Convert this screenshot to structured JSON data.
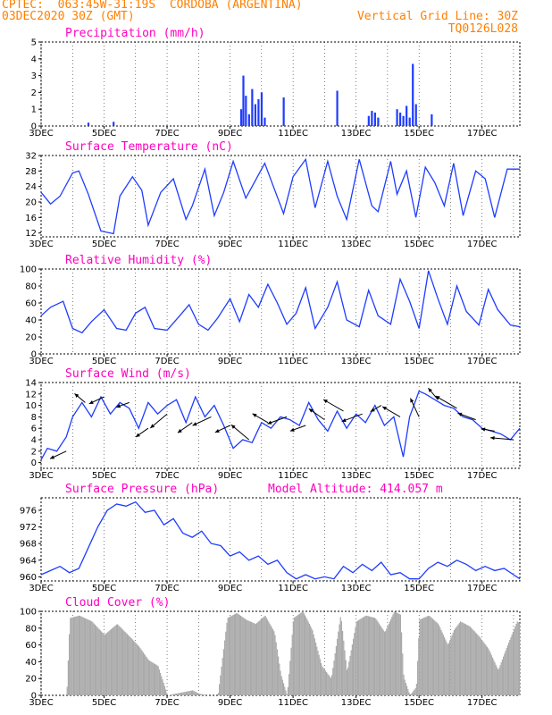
{
  "header": {
    "line1": "CPTEC:  063:45W-31:19S  CORDOBA (ARGENTINA)",
    "line2": "03DEC2020 30Z (GMT)",
    "grid_note": "Vertical Grid Line: 30Z",
    "code": "TQ0126L028"
  },
  "colors": {
    "header": "#ff8000",
    "title": "#ff00c0",
    "line": "#1e3cff",
    "bars": "#1e3cff",
    "cloud": "#aaaaaa",
    "grid": "#000000"
  },
  "chart_data": [
    {
      "type": "bar",
      "title": "Precipitation (mm/h)",
      "ylim": [
        0,
        5
      ],
      "yticks": [
        0,
        1,
        2,
        3,
        4,
        5
      ],
      "x_date_labels": [
        "3DEC",
        "5DEC",
        "7DEC",
        "9DEC",
        "11DEC",
        "13DEC",
        "15DEC",
        "17DEC"
      ],
      "x_range_days": [
        3.0,
        18.2
      ],
      "series": [
        {
          "x": [
            4.5,
            5.3,
            9.35,
            9.42,
            9.5,
            9.6,
            9.7,
            9.8,
            9.9,
            10.0,
            10.1,
            10.7,
            12.4,
            13.4,
            13.5,
            13.6,
            13.7,
            14.3,
            14.4,
            14.5,
            14.6,
            14.7,
            14.8,
            14.9,
            15.4
          ],
          "values": [
            0.2,
            0.25,
            1.0,
            3.0,
            1.8,
            0.7,
            2.2,
            1.3,
            1.6,
            2.0,
            0.5,
            1.7,
            2.1,
            0.6,
            0.9,
            0.8,
            0.5,
            1.0,
            0.8,
            0.6,
            1.2,
            0.5,
            3.7,
            1.3,
            0.7
          ]
        }
      ]
    },
    {
      "type": "line",
      "title": "Surface Temperature (nC)",
      "ylim": [
        11,
        32
      ],
      "yticks": [
        12,
        16,
        20,
        24,
        28,
        32
      ],
      "x_date_labels": [
        "3DEC",
        "5DEC",
        "7DEC",
        "9DEC",
        "11DEC",
        "13DEC",
        "15DEC",
        "17DEC"
      ],
      "x_range_days": [
        3.0,
        18.2
      ],
      "series": [
        {
          "x": [
            3.0,
            3.3,
            3.6,
            4.0,
            4.2,
            4.5,
            4.9,
            5.3,
            5.5,
            5.9,
            6.2,
            6.4,
            6.8,
            7.2,
            7.6,
            7.8,
            8.2,
            8.5,
            8.8,
            9.1,
            9.5,
            9.8,
            10.1,
            10.4,
            10.7,
            11.0,
            11.4,
            11.7,
            12.1,
            12.4,
            12.7,
            13.1,
            13.5,
            13.7,
            14.1,
            14.3,
            14.6,
            14.9,
            15.2,
            15.5,
            15.8,
            16.1,
            16.4,
            16.8,
            17.1,
            17.4,
            17.8,
            18.2
          ],
          "values": [
            22.5,
            19.5,
            21.5,
            27.5,
            28.0,
            22.0,
            12.5,
            11.8,
            21.5,
            26.5,
            23.0,
            14.0,
            22.5,
            26.0,
            15.5,
            19.0,
            28.5,
            16.5,
            22.5,
            30.5,
            21.0,
            25.5,
            30.0,
            23.5,
            17.0,
            26.5,
            31.0,
            18.5,
            30.5,
            21.5,
            15.5,
            31.0,
            19.0,
            17.5,
            30.5,
            22.0,
            28.0,
            16.0,
            29.0,
            25.0,
            19.0,
            30.0,
            16.5,
            28.0,
            26.0,
            16.0,
            28.5,
            28.5
          ]
        }
      ]
    },
    {
      "type": "line",
      "title": "Relative Humidity (%)",
      "ylim": [
        0,
        100
      ],
      "yticks": [
        0,
        20,
        40,
        60,
        80,
        100
      ],
      "x_date_labels": [
        "3DEC",
        "5DEC",
        "7DEC",
        "9DEC",
        "11DEC",
        "13DEC",
        "15DEC",
        "17DEC"
      ],
      "x_range_days": [
        3.0,
        18.2
      ],
      "series": [
        {
          "x": [
            3.0,
            3.3,
            3.7,
            4.0,
            4.3,
            4.6,
            5.0,
            5.4,
            5.7,
            6.0,
            6.3,
            6.6,
            7.0,
            7.4,
            7.7,
            8.0,
            8.3,
            8.6,
            9.0,
            9.3,
            9.6,
            9.9,
            10.2,
            10.5,
            10.8,
            11.1,
            11.4,
            11.7,
            12.1,
            12.4,
            12.7,
            13.1,
            13.4,
            13.7,
            14.1,
            14.4,
            14.7,
            15.0,
            15.3,
            15.6,
            15.9,
            16.2,
            16.5,
            16.9,
            17.2,
            17.5,
            17.9,
            18.2
          ],
          "values": [
            45,
            55,
            62,
            30,
            25,
            38,
            52,
            30,
            28,
            48,
            55,
            30,
            28,
            45,
            58,
            35,
            28,
            42,
            65,
            38,
            70,
            55,
            82,
            60,
            35,
            48,
            78,
            30,
            55,
            85,
            40,
            32,
            75,
            45,
            35,
            88,
            62,
            30,
            98,
            65,
            35,
            80,
            50,
            34,
            76,
            52,
            34,
            32
          ]
        }
      ]
    },
    {
      "type": "line",
      "title": "Surface Wind (m/s)",
      "ylim": [
        -1,
        14
      ],
      "yticks": [
        0,
        2,
        4,
        6,
        8,
        10,
        12,
        14
      ],
      "x_date_labels": [
        "3DEC",
        "5DEC",
        "7DEC",
        "9DEC",
        "11DEC",
        "13DEC",
        "15DEC",
        "17DEC"
      ],
      "x_range_days": [
        3.0,
        18.2
      ],
      "series": [
        {
          "x": [
            3.0,
            3.2,
            3.5,
            3.8,
            4.0,
            4.3,
            4.6,
            4.9,
            5.2,
            5.5,
            5.8,
            6.1,
            6.4,
            6.7,
            7.0,
            7.3,
            7.6,
            7.9,
            8.2,
            8.5,
            8.8,
            9.1,
            9.4,
            9.7,
            10.0,
            10.3,
            10.6,
            10.9,
            11.2,
            11.5,
            11.8,
            12.1,
            12.4,
            12.7,
            13.0,
            13.3,
            13.6,
            13.9,
            14.2,
            14.5,
            14.7,
            15.0,
            15.2,
            15.5,
            15.8,
            16.1,
            16.4,
            16.7,
            17.0,
            17.3,
            17.6,
            17.9,
            18.2
          ],
          "values": [
            0.5,
            2.5,
            2.0,
            4.5,
            8.0,
            10.5,
            8.0,
            11.5,
            8.5,
            10.5,
            9.5,
            6.0,
            10.5,
            8.5,
            10.0,
            11.0,
            7.0,
            11.5,
            8.0,
            10.0,
            6.5,
            2.5,
            4.0,
            3.5,
            7.0,
            6.0,
            8.0,
            7.5,
            6.5,
            10.5,
            7.5,
            5.5,
            9.0,
            6.0,
            8.5,
            7.0,
            10.0,
            6.5,
            8.0,
            1.0,
            8.0,
            12.5,
            12.0,
            11.0,
            10.0,
            9.5,
            8.0,
            7.5,
            6.0,
            5.5,
            5.0,
            4.0,
            6.0
          ]
        }
      ],
      "wind_barbs_x": [
        3.8,
        4.4,
        5.0,
        5.8,
        6.4,
        7.0,
        7.8,
        8.4,
        9.0,
        9.6,
        10.2,
        10.8,
        11.4,
        12.0,
        12.6,
        13.2,
        13.8,
        14.4,
        15.0,
        15.6,
        16.2,
        16.8,
        17.4,
        18.0
      ]
    },
    {
      "type": "line",
      "title": "Surface Pressure (hPa)",
      "annotation": "Model Altitude: 414.057 m",
      "ylim": [
        959,
        979
      ],
      "yticks": [
        960,
        964,
        968,
        972,
        976
      ],
      "x_date_labels": [
        "3DEC",
        "5DEC",
        "7DEC",
        "9DEC",
        "11DEC",
        "13DEC",
        "15DEC",
        "17DEC"
      ],
      "x_range_days": [
        3.0,
        18.2
      ],
      "series": [
        {
          "x": [
            3.0,
            3.3,
            3.6,
            3.9,
            4.2,
            4.5,
            4.8,
            5.1,
            5.4,
            5.7,
            6.0,
            6.3,
            6.6,
            6.9,
            7.2,
            7.5,
            7.8,
            8.1,
            8.4,
            8.7,
            9.0,
            9.3,
            9.6,
            9.9,
            10.2,
            10.5,
            10.8,
            11.1,
            11.4,
            11.7,
            12.0,
            12.3,
            12.6,
            12.9,
            13.2,
            13.5,
            13.8,
            14.1,
            14.4,
            14.7,
            15.0,
            15.3,
            15.6,
            15.9,
            16.2,
            16.5,
            16.8,
            17.1,
            17.4,
            17.7,
            18.0,
            18.2
          ],
          "values": [
            960.5,
            961.5,
            962.5,
            961.0,
            962.0,
            967.0,
            972.0,
            976.0,
            977.5,
            977.0,
            978.0,
            975.5,
            976.0,
            972.5,
            974.0,
            970.5,
            969.5,
            971.0,
            968.0,
            967.5,
            965.0,
            966.0,
            964.0,
            965.0,
            963.0,
            964.0,
            961.0,
            959.5,
            960.5,
            959.5,
            960.0,
            959.5,
            962.5,
            961.0,
            963.0,
            961.5,
            963.5,
            960.5,
            961.0,
            959.5,
            959.5,
            962.0,
            963.5,
            962.5,
            964.0,
            963.0,
            961.5,
            962.5,
            961.5,
            962.0,
            960.5,
            959.5
          ]
        }
      ]
    },
    {
      "type": "area",
      "title": "Cloud Cover (%)",
      "ylim": [
        0,
        100
      ],
      "yticks": [
        0,
        20,
        40,
        60,
        80,
        100
      ],
      "x_date_labels": [
        "3DEC",
        "5DEC",
        "7DEC",
        "9DEC",
        "11DEC",
        "13DEC",
        "15DEC",
        "17DEC"
      ],
      "x_range_days": [
        3.0,
        18.2
      ],
      "series": [
        {
          "x": [
            3.0,
            3.8,
            3.9,
            4.2,
            4.6,
            5.0,
            5.4,
            5.8,
            6.1,
            6.4,
            6.7,
            6.9,
            7.0,
            7.8,
            8.0,
            8.3,
            8.6,
            8.9,
            9.2,
            9.5,
            9.8,
            10.1,
            10.4,
            10.6,
            10.8,
            11.0,
            11.3,
            11.6,
            11.9,
            12.2,
            12.5,
            12.7,
            13.0,
            13.3,
            13.6,
            13.9,
            14.2,
            14.4,
            14.5,
            14.7,
            14.9,
            15.0,
            15.3,
            15.6,
            15.9,
            16.1,
            16.3,
            16.6,
            16.9,
            17.2,
            17.5,
            17.8,
            18.1,
            18.2
          ],
          "values": [
            0,
            0,
            92,
            95,
            88,
            72,
            85,
            70,
            58,
            42,
            35,
            12,
            0,
            6,
            2,
            0,
            0,
            92,
            98,
            90,
            85,
            95,
            75,
            25,
            0,
            92,
            100,
            78,
            35,
            20,
            96,
            28,
            88,
            95,
            92,
            75,
            100,
            96,
            22,
            0,
            10,
            90,
            95,
            85,
            60,
            78,
            88,
            82,
            70,
            55,
            30,
            60,
            88,
            85
          ]
        }
      ]
    }
  ]
}
